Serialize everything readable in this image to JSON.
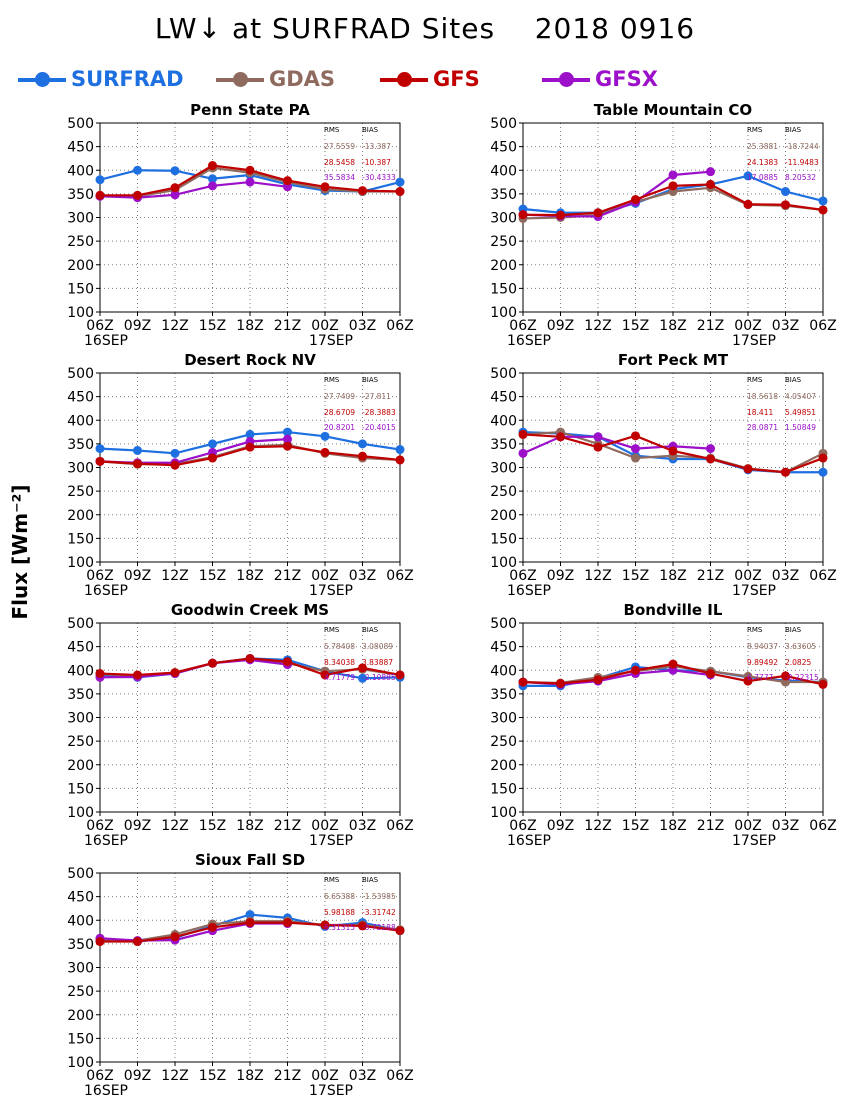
{
  "title": "LW↓ at SURFRAD Sites    2018 0916",
  "ylabel": "Flux [Wm⁻²]",
  "legend": [
    {
      "name": "SURFRAD",
      "color": "#1e6fe0"
    },
    {
      "name": "GDAS",
      "color": "#8f6a5e"
    },
    {
      "name": "GFS",
      "color": "#c00000"
    },
    {
      "name": "GFSX",
      "color": "#9b10c8"
    }
  ],
  "stats_header": {
    "rms": "RMS",
    "bias": "BIAS"
  },
  "chart_data": [
    {
      "type": "line",
      "title": "Penn State PA",
      "x": [
        "06Z",
        "09Z",
        "12Z",
        "15Z",
        "18Z",
        "21Z",
        "00Z",
        "03Z",
        "06Z"
      ],
      "date_labels": [
        "16SEP",
        "17SEP"
      ],
      "ylim": [
        100,
        500
      ],
      "yticks": [
        100,
        150,
        200,
        250,
        300,
        350,
        400,
        450,
        500
      ],
      "grid": true,
      "series": [
        {
          "name": "SURFRAD",
          "values": [
            380,
            400,
            399,
            382,
            390,
            370,
            357,
            355,
            375
          ]
        },
        {
          "name": "GDAS",
          "values": [
            345,
            345,
            358,
            405,
            395,
            375,
            360,
            355,
            355
          ]
        },
        {
          "name": "GFS",
          "values": [
            347,
            347,
            363,
            410,
            400,
            378,
            365,
            357,
            355
          ]
        },
        {
          "name": "GFSX",
          "values": [
            345,
            342,
            348,
            367,
            375,
            365,
            null,
            null,
            null
          ]
        }
      ],
      "stats": [
        {
          "model": "GDAS",
          "rms": "27.5559",
          "bias": "-13.387"
        },
        {
          "model": "GFS",
          "rms": "28.5458",
          "bias": "-10.387"
        },
        {
          "model": "GFSX",
          "rms": "35.5834",
          "bias": "-30.4333"
        }
      ]
    },
    {
      "type": "line",
      "title": "Table Mountain CO",
      "x": [
        "06Z",
        "09Z",
        "12Z",
        "15Z",
        "18Z",
        "21Z",
        "00Z",
        "03Z",
        "06Z"
      ],
      "date_labels": [
        "16SEP",
        "17SEP"
      ],
      "ylim": [
        100,
        500
      ],
      "yticks": [
        100,
        150,
        200,
        250,
        300,
        350,
        400,
        450,
        500
      ],
      "grid": true,
      "series": [
        {
          "name": "SURFRAD",
          "values": [
            318,
            310,
            310,
            330,
            360,
            370,
            388,
            355,
            335
          ]
        },
        {
          "name": "GDAS",
          "values": [
            298,
            300,
            305,
            333,
            355,
            363,
            327,
            325,
            316
          ]
        },
        {
          "name": "GFS",
          "values": [
            306,
            305,
            310,
            338,
            367,
            370,
            328,
            327,
            316
          ]
        },
        {
          "name": "GFSX",
          "values": [
            306,
            303,
            302,
            333,
            390,
            397,
            null,
            null,
            null
          ]
        }
      ],
      "stats": [
        {
          "model": "GDAS",
          "rms": "25.3881",
          "bias": "-18.7244"
        },
        {
          "model": "GFS",
          "rms": "24.1383",
          "bias": "-11.9483"
        },
        {
          "model": "GFSX",
          "rms": "17.0885",
          "bias": "8.20532"
        }
      ]
    },
    {
      "type": "line",
      "title": "Desert Rock NV",
      "x": [
        "06Z",
        "09Z",
        "12Z",
        "15Z",
        "18Z",
        "21Z",
        "00Z",
        "03Z",
        "06Z"
      ],
      "date_labels": [
        "16SEP",
        "17SEP"
      ],
      "ylim": [
        100,
        500
      ],
      "yticks": [
        100,
        150,
        200,
        250,
        300,
        350,
        400,
        450,
        500
      ],
      "grid": true,
      "series": [
        {
          "name": "SURFRAD",
          "values": [
            340,
            336,
            330,
            350,
            370,
            375,
            366,
            350,
            338
          ]
        },
        {
          "name": "GDAS",
          "values": [
            313,
            307,
            307,
            322,
            345,
            348,
            330,
            320,
            316
          ]
        },
        {
          "name": "GFS",
          "values": [
            313,
            308,
            305,
            320,
            343,
            345,
            332,
            324,
            316
          ]
        },
        {
          "name": "GFSX",
          "values": [
            313,
            310,
            310,
            332,
            355,
            360,
            null,
            null,
            null
          ]
        }
      ],
      "stats": [
        {
          "model": "GDAS",
          "rms": "27.7409",
          "bias": "-27.811"
        },
        {
          "model": "GFS",
          "rms": "28.6709",
          "bias": "-28.3883"
        },
        {
          "model": "GFSX",
          "rms": "20.8201",
          "bias": "-20.4015"
        }
      ]
    },
    {
      "type": "line",
      "title": "Fort Peck MT",
      "x": [
        "06Z",
        "09Z",
        "12Z",
        "15Z",
        "18Z",
        "21Z",
        "00Z",
        "03Z",
        "06Z"
      ],
      "date_labels": [
        "16SEP",
        "17SEP"
      ],
      "ylim": [
        100,
        500
      ],
      "yticks": [
        100,
        150,
        200,
        250,
        300,
        350,
        400,
        450,
        500
      ],
      "grid": true,
      "series": [
        {
          "name": "SURFRAD",
          "values": [
            375,
            372,
            365,
            325,
            318,
            318,
            295,
            290,
            290
          ]
        },
        {
          "name": "GDAS",
          "values": [
            370,
            375,
            350,
            320,
            325,
            320,
            298,
            290,
            330
          ]
        },
        {
          "name": "GFS",
          "values": [
            370,
            365,
            343,
            367,
            335,
            318,
            297,
            290,
            320
          ]
        },
        {
          "name": "GFSX",
          "values": [
            330,
            365,
            365,
            340,
            345,
            340,
            null,
            null,
            null
          ]
        }
      ],
      "stats": [
        {
          "model": "GDAS",
          "rms": "18.5618",
          "bias": "4.05407"
        },
        {
          "model": "GFS",
          "rms": "18.411",
          "bias": "5.49851"
        },
        {
          "model": "GFSX",
          "rms": "28.0871",
          "bias": "1.50849"
        }
      ]
    },
    {
      "type": "line",
      "title": "Goodwin Creek MS",
      "x": [
        "06Z",
        "09Z",
        "12Z",
        "15Z",
        "18Z",
        "21Z",
        "00Z",
        "03Z",
        "06Z"
      ],
      "date_labels": [
        "16SEP",
        "17SEP"
      ],
      "ylim": [
        100,
        500
      ],
      "yticks": [
        100,
        150,
        200,
        250,
        300,
        350,
        400,
        450,
        500
      ],
      "grid": true,
      "series": [
        {
          "name": "SURFRAD",
          "values": [
            388,
            385,
            393,
            415,
            425,
            422,
            398,
            383,
            385
          ]
        },
        {
          "name": "GDAS",
          "values": [
            392,
            388,
            395,
            415,
            423,
            415,
            398,
            402,
            390
          ]
        },
        {
          "name": "GFS",
          "values": [
            393,
            390,
            395,
            415,
            425,
            418,
            390,
            405,
            390
          ]
        },
        {
          "name": "GFSX",
          "values": [
            385,
            386,
            393,
            415,
            422,
            412,
            null,
            null,
            null
          ]
        }
      ],
      "stats": [
        {
          "model": "GDAS",
          "rms": "5.78408",
          "bias": "3.08089"
        },
        {
          "model": "GFS",
          "rms": "8.34038",
          "bias": "3.83887"
        },
        {
          "model": "GFSX",
          "rms": "4.71779",
          "bias": "-2.10885"
        }
      ]
    },
    {
      "type": "line",
      "title": "Bondville IL",
      "x": [
        "06Z",
        "09Z",
        "12Z",
        "15Z",
        "18Z",
        "21Z",
        "00Z",
        "03Z",
        "06Z"
      ],
      "date_labels": [
        "16SEP",
        "17SEP"
      ],
      "ylim": [
        100,
        500
      ],
      "yticks": [
        100,
        150,
        200,
        250,
        300,
        350,
        400,
        450,
        500
      ],
      "grid": true,
      "series": [
        {
          "name": "SURFRAD",
          "values": [
            367,
            367,
            383,
            407,
            400,
            398,
            385,
            378,
            375
          ]
        },
        {
          "name": "GDAS",
          "values": [
            375,
            373,
            385,
            398,
            408,
            398,
            387,
            375,
            375
          ]
        },
        {
          "name": "GFS",
          "values": [
            375,
            372,
            380,
            400,
            413,
            393,
            377,
            388,
            370
          ]
        },
        {
          "name": "GFSX",
          "values": [
            375,
            370,
            377,
            393,
            400,
            390,
            null,
            null,
            null
          ]
        }
      ],
      "stats": [
        {
          "model": "GDAS",
          "rms": "8.94037",
          "bias": "3.63605"
        },
        {
          "model": "GFS",
          "rms": "9.89492",
          "bias": "2.0825"
        },
        {
          "model": "GFSX",
          "rms": "6.7777",
          "bias": "-2.22315"
        }
      ]
    },
    {
      "type": "line",
      "title": "Sioux Fall SD",
      "x": [
        "06Z",
        "09Z",
        "12Z",
        "15Z",
        "18Z",
        "21Z",
        "00Z",
        "03Z",
        "06Z"
      ],
      "date_labels": [
        "16SEP",
        "17SEP"
      ],
      "ylim": [
        100,
        500
      ],
      "yticks": [
        100,
        150,
        200,
        250,
        300,
        350,
        400,
        450,
        500
      ],
      "grid": true,
      "series": [
        {
          "name": "SURFRAD",
          "values": [
            358,
            355,
            363,
            388,
            412,
            405,
            387,
            395,
            378
          ]
        },
        {
          "name": "GDAS",
          "values": [
            360,
            357,
            370,
            392,
            398,
            398,
            390,
            390,
            380
          ]
        },
        {
          "name": "GFS",
          "values": [
            355,
            355,
            365,
            385,
            395,
            395,
            390,
            388,
            378
          ]
        },
        {
          "name": "GFSX",
          "values": [
            362,
            357,
            358,
            378,
            393,
            393,
            null,
            null,
            null
          ]
        }
      ],
      "stats": [
        {
          "model": "GDAS",
          "rms": "6.65388",
          "bias": "-1.53985"
        },
        {
          "model": "GFS",
          "rms": "5.98188",
          "bias": "-3.31742"
        },
        {
          "model": "GFSX",
          "rms": "6.31315",
          "bias": "-5.72188"
        }
      ]
    }
  ]
}
